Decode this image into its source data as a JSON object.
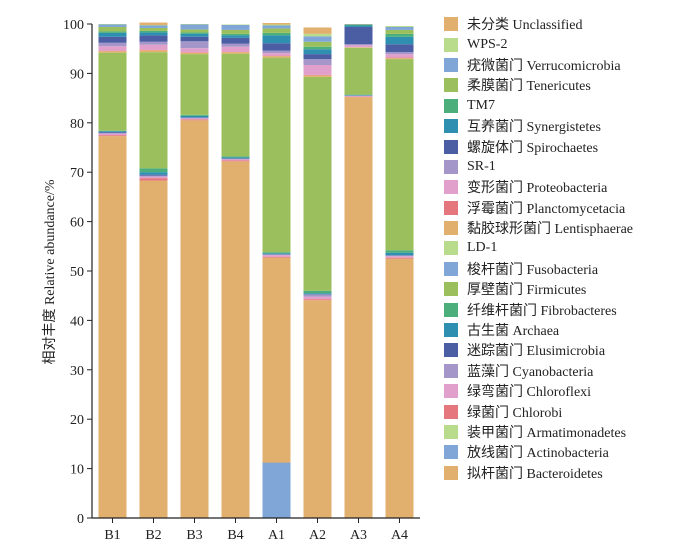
{
  "chart_data": {
    "type": "stacked-bar",
    "ylabel": "相对丰度 Relative abundance/%",
    "ylim": [
      0,
      100
    ],
    "yticks": [
      0,
      10,
      20,
      30,
      40,
      50,
      60,
      70,
      80,
      90,
      100
    ],
    "categories": [
      "B1",
      "B2",
      "B3",
      "B4",
      "A1",
      "A2",
      "A3",
      "A4"
    ],
    "series": [
      {
        "name": "拟杆菌门 Bacteroidetes",
        "color": "#E2B06E",
        "values": [
          77.3,
          68.3,
          80.5,
          72.2,
          52.7,
          44.1,
          85.2,
          52.5
        ]
      },
      {
        "name": "放线菌门 Actinobacteria",
        "color": "#7FA6D6",
        "values": [
          0.0,
          0.0,
          0.0,
          0.0,
          0.0,
          0.0,
          0.0,
          0.0
        ]
      },
      {
        "name": "装甲菌门 Armatimonadetes",
        "color": "#B9DC8C",
        "values": [
          0.0,
          0.0,
          0.0,
          0.0,
          0.0,
          0.0,
          0.0,
          0.0
        ]
      },
      {
        "name": "绿菌门 Chlorobi",
        "color": "#E5767E",
        "values": [
          0.2,
          0.5,
          0.2,
          0.2,
          0.2,
          0.2,
          0.1,
          0.2
        ]
      },
      {
        "name": "绿弯菌门 Chloroflexi",
        "color": "#E1A0CC",
        "values": [
          0.3,
          0.3,
          0.2,
          0.2,
          0.3,
          0.5,
          0.1,
          0.3
        ]
      },
      {
        "name": "蓝藻门 Cyanobacteria",
        "color": "#A596C9",
        "values": [
          0.1,
          0.2,
          0.1,
          0.1,
          0.1,
          0.4,
          0.1,
          0.1
        ]
      },
      {
        "name": "迷踪菌门 Elusimicrobia",
        "color": "#4B5DA3",
        "values": [
          0.2,
          0.2,
          0.1,
          0.1,
          0.1,
          0.1,
          0.0,
          0.1
        ]
      },
      {
        "name": "古生菌 Archaea",
        "color": "#2E8FB0",
        "values": [
          0.2,
          0.5,
          0.3,
          0.2,
          0.2,
          0.2,
          0.1,
          0.5
        ]
      },
      {
        "name": "纤维杆菌门 Fibrobacteres",
        "color": "#4CAE7A",
        "values": [
          0.1,
          0.8,
          0.2,
          0.2,
          0.2,
          0.5,
          0.1,
          0.5
        ]
      },
      {
        "name": "厚壁菌门 Firmicutes",
        "color": "#9CBF5E",
        "values": [
          15.8,
          23.5,
          12.3,
          20.8,
          39.4,
          43.3,
          9.5,
          38.7
        ]
      },
      {
        "name": "梭杆菌门 Fusobacteria",
        "color": "#7FA6D6",
        "values": [
          0.0,
          0.0,
          0.0,
          0.0,
          0.0,
          0.0,
          0.0,
          0.0
        ]
      },
      {
        "name": "LD-1",
        "color": "#B9DC8C",
        "values": [
          0.0,
          0.0,
          0.0,
          0.0,
          0.0,
          0.0,
          0.0,
          0.0
        ]
      },
      {
        "name": "黏胶球形菌门 Lentisphaerae",
        "color": "#E2B06E",
        "values": [
          0.3,
          0.4,
          0.3,
          0.3,
          0.3,
          0.3,
          0.1,
          0.2
        ]
      },
      {
        "name": "浮霉菌门 Planctomycetacia",
        "color": "#E5767E",
        "values": [
          0.1,
          0.1,
          0.1,
          0.1,
          0.1,
          0.1,
          0.0,
          0.1
        ]
      },
      {
        "name": "变形菌门 Proteobacteria",
        "color": "#E1A0CC",
        "values": [
          0.9,
          1.0,
          0.8,
          1.0,
          0.5,
          2.0,
          0.4,
          0.7
        ]
      },
      {
        "name": "SR-1",
        "color": "#A596C9",
        "values": [
          0.7,
          0.6,
          1.4,
          0.6,
          0.5,
          1.2,
          0.2,
          0.4
        ]
      },
      {
        "name": "螺旋体门 Spirochaetes",
        "color": "#4B5DA3",
        "values": [
          1.2,
          1.3,
          0.9,
          1.2,
          1.5,
          1.0,
          3.5,
          1.6
        ]
      },
      {
        "name": "互养菌门 Synergistetes",
        "color": "#2E8FB0",
        "values": [
          0.8,
          0.6,
          0.6,
          0.5,
          1.6,
          1.0,
          0.3,
          1.5
        ]
      },
      {
        "name": "TM7",
        "color": "#4CAE7A",
        "values": [
          0.3,
          0.3,
          0.3,
          0.3,
          0.5,
          0.5,
          0.1,
          0.6
        ]
      },
      {
        "name": "柔膜菌门 Tenericutes",
        "color": "#9CBF5E",
        "values": [
          0.9,
          0.6,
          0.6,
          0.8,
          0.9,
          1.0,
          0.1,
          0.8
        ]
      },
      {
        "name": "疣微菌门 Verrucomicrobia",
        "color": "#7FA6D6",
        "values": [
          0.5,
          0.5,
          1.0,
          1.0,
          0.6,
          1.1,
          0.1,
          0.6
        ]
      },
      {
        "name": "WPS-2",
        "color": "#B9DC8C",
        "values": [
          0.1,
          0.1,
          0.1,
          0.1,
          0.2,
          0.5,
          0.0,
          0.2
        ]
      },
      {
        "name": "未分类 Unclassified",
        "color": "#E2B06E",
        "values": [
          0.0,
          0.5,
          0.0,
          0.0,
          0.3,
          1.3,
          0.0,
          0.0
        ]
      }
    ],
    "overlay": {
      "category": "A1",
      "color": "#7FA6D6",
      "value": 11.2
    }
  }
}
